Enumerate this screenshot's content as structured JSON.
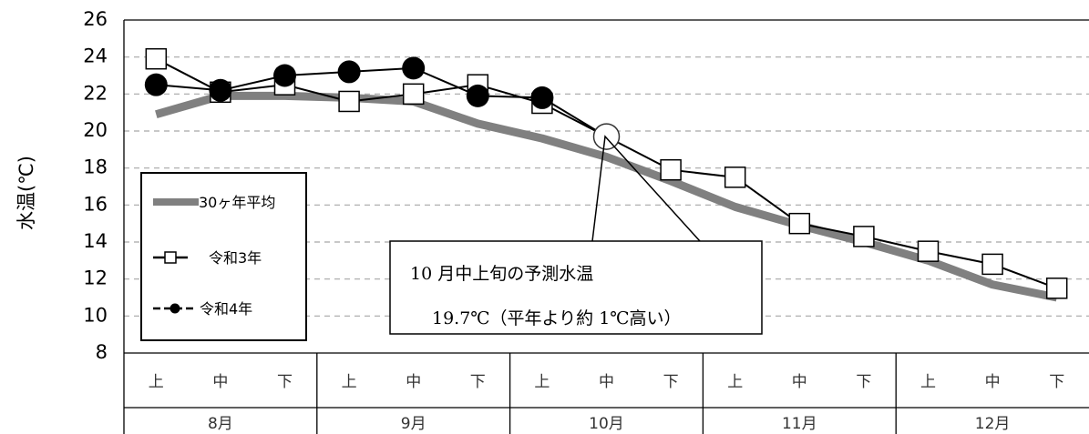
{
  "chart_data": {
    "type": "line",
    "title": "",
    "xlabel": "",
    "ylabel": "水温(℃)",
    "ylim": [
      8,
      26
    ],
    "yticks": [
      "26",
      "24",
      "22",
      "20",
      "18",
      "16",
      "14",
      "12",
      "10",
      "8"
    ],
    "categories": [
      "上",
      "中",
      "下",
      "上",
      "中",
      "下",
      "上",
      "中",
      "下",
      "上",
      "中",
      "下",
      "上",
      "中",
      "下"
    ],
    "month_groups": [
      "8月",
      "9月",
      "10月",
      "11月",
      "12月"
    ],
    "grid": "dashed horizontal",
    "legend_position": "left",
    "series": [
      {
        "name": "30ヶ年平均",
        "values": [
          20.9,
          21.9,
          21.9,
          21.8,
          21.6,
          20.4,
          19.6,
          18.6,
          17.3,
          15.9,
          14.9,
          14.0,
          13.0,
          11.7,
          11.0
        ],
        "color": "#808080"
      },
      {
        "name": "令和3年",
        "values": [
          23.9,
          22.1,
          22.5,
          21.6,
          22.0,
          22.5,
          21.5,
          null,
          17.9,
          17.5,
          15.0,
          14.3,
          13.5,
          12.8,
          11.5
        ],
        "color": "#000000"
      },
      {
        "name": "令和4年",
        "values": [
          22.5,
          22.2,
          23.0,
          23.2,
          23.4,
          21.9,
          21.8,
          null,
          null,
          null,
          null,
          null,
          null,
          null,
          null
        ],
        "color": "#000000"
      }
    ],
    "forecast_point": {
      "x_index": 7,
      "value": 19.7
    }
  },
  "legend": {
    "items": [
      "30ヶ年平均",
      "令和3年",
      "令和4年"
    ]
  },
  "callout": {
    "line1": "10 月中上旬の予測水温",
    "line2": "19.7℃（平年より約 1℃高い）"
  }
}
